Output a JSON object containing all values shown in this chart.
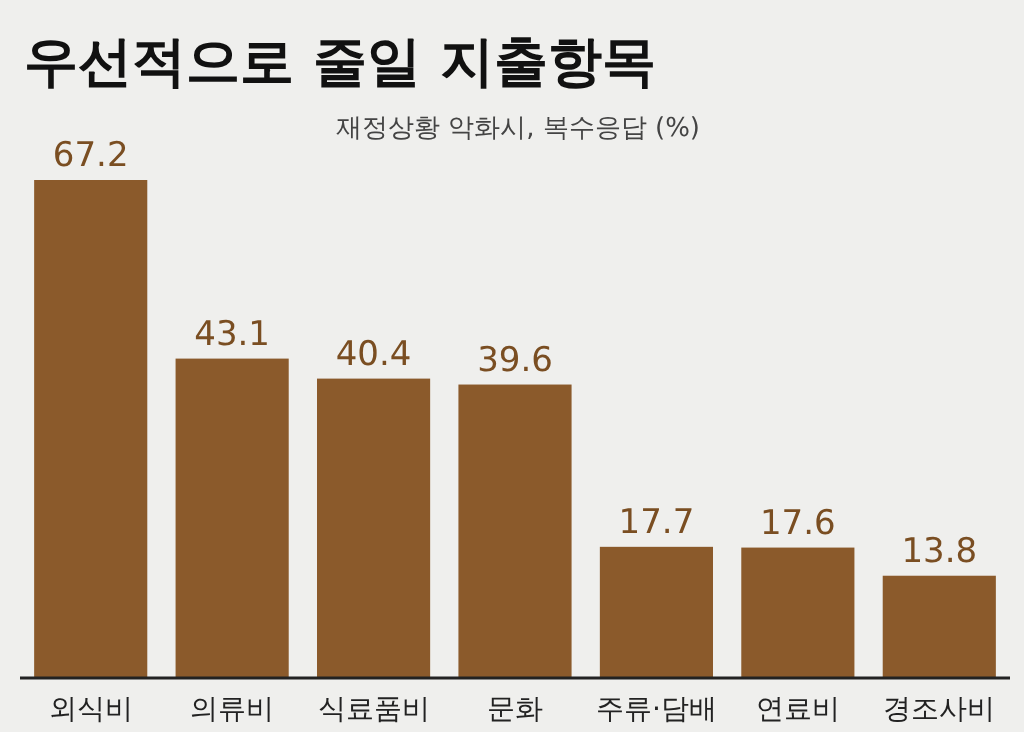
{
  "chart_data": {
    "type": "bar",
    "title": "우선적으로 줄일 지출항목",
    "subtitle": "재정상황 악화시, 복수응답 (%)",
    "categories": [
      "외식비",
      "의류비",
      "식료품비",
      "문화",
      "주류·담배",
      "연료비",
      "경조사비"
    ],
    "values": [
      67.2,
      43.1,
      40.4,
      39.6,
      17.7,
      17.6,
      13.8
    ],
    "color": "#8b5a2b",
    "data_labels": true
  }
}
